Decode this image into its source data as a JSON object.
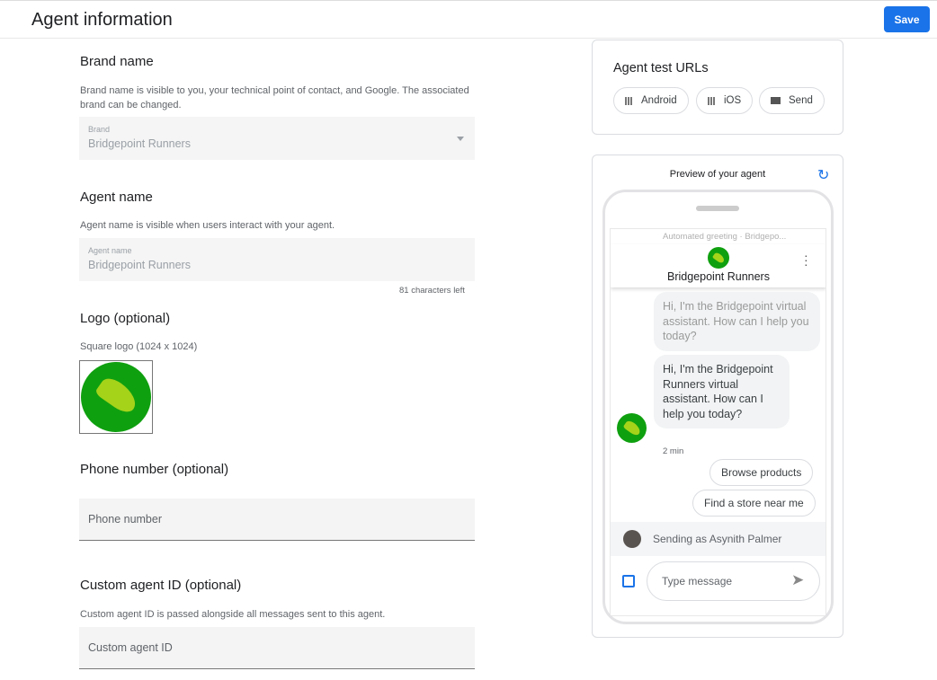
{
  "header": {
    "title": "Agent information",
    "save_label": "Save"
  },
  "brand": {
    "heading": "Brand name",
    "help": "Brand name is visible to you, your technical point of contact, and Google. The associated brand can be changed.",
    "field_label": "Brand",
    "field_value": "Bridgepoint Runners"
  },
  "agent_name": {
    "heading": "Agent name",
    "help": "Agent name is visible when users interact with your agent.",
    "field_label": "Agent name",
    "field_value": "Bridgepoint Runners",
    "counter": "81 characters left"
  },
  "logo": {
    "heading": "Logo (optional)",
    "help": "Square logo (1024 x 1024)"
  },
  "phone": {
    "heading": "Phone number (optional)",
    "placeholder": "Phone number"
  },
  "custom_id": {
    "heading": "Custom agent ID (optional)",
    "help": "Custom agent ID is passed alongside all messages sent to this agent.",
    "placeholder": "Custom agent ID"
  },
  "test_urls": {
    "heading": "Agent test URLs",
    "buttons": [
      {
        "label": "Android",
        "icon": "qr-code-icon"
      },
      {
        "label": "iOS",
        "icon": "qr-code-icon"
      },
      {
        "label": "Send",
        "icon": "mail-icon"
      }
    ]
  },
  "preview": {
    "title": "Preview of your agent",
    "agent_name": "Bridgepoint Runners",
    "faded_caption": "Automated greeting · Bridgepo...",
    "faded_message": "Hi, I'm the Bridgepoint virtual assistant. How can I help you today?",
    "message": "Hi, I'm the Bridgepoint Runners virtual assistant. How can I help you today?",
    "timestamp": "2 min",
    "suggestions": [
      "Browse products",
      "Find a store near me"
    ],
    "sending_as": "Sending as Asynith Palmer",
    "input_placeholder": "Type message"
  },
  "colors": {
    "accent": "#1a73e8",
    "logo_green": "#0fa00f"
  }
}
